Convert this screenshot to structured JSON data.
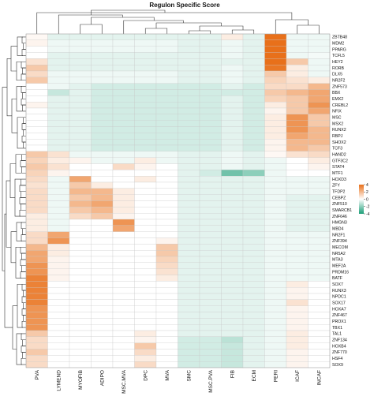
{
  "chart_data": {
    "type": "heatmap",
    "title": "Regulon Specific Score",
    "columns": [
      "PVA",
      "LYMEND",
      "MYOFIB",
      "ADIPO",
      "MSC.MVA",
      "DPC",
      "MVA",
      "SMC",
      "MSC.PVA",
      "FIB",
      "ECM",
      "PERI",
      "ICAF",
      "INCAF"
    ],
    "rows": [
      "ZBTB48",
      "MDM2",
      "PPARG",
      "TCFL5",
      "HEY2",
      "RORB",
      "DLX5",
      "NR2F2",
      "ZNF573",
      "BBX",
      "EMX2",
      "CREBL2",
      "NFIX",
      "MSC",
      "MSX2",
      "RUNX2",
      "RBPJ",
      "SHOX2",
      "TCF3",
      "HAND2",
      "GTF3C2",
      "STAT4",
      "MTF1",
      "HOXD3",
      "ZFY",
      "TFDP2",
      "CEBPZ",
      "ZNF510",
      "SMARCB1",
      "ZNF646",
      "HMGN3",
      "MBD4",
      "NR2F1",
      "ZNF394",
      "MECOM",
      "NR5A2",
      "MTA3",
      "MEF2A",
      "PRDM16",
      "BATF",
      "SOX7",
      "RUNX3",
      "NPDC1",
      "SOX17",
      "HOXA7",
      "ZNF467",
      "PROX1",
      "TBX1",
      "TAL1",
      "ZNF134",
      "HOXB4",
      "ZNF770",
      "HSF4",
      "SOX9"
    ],
    "values": [
      [
        0.2,
        -0.5,
        -0.5,
        -0.5,
        -0.5,
        -0.5,
        -0.5,
        -0.5,
        -0.5,
        0.5,
        -0.5,
        4,
        -0.3,
        -0.3
      ],
      [
        0.3,
        -0.3,
        -0.3,
        -0.3,
        -0.3,
        -0.3,
        -0.3,
        -0.5,
        -0.5,
        -0.3,
        -0.5,
        4,
        -0.3,
        -0.3
      ],
      [
        0,
        -0.3,
        -0.3,
        -0.3,
        -0.3,
        -0.3,
        -0.3,
        -0.5,
        -0.5,
        -0.3,
        -0.5,
        4,
        -0.3,
        -0.3
      ],
      [
        0,
        -0.5,
        -0.5,
        -0.5,
        -0.5,
        -0.5,
        -0.5,
        -0.5,
        -0.5,
        -0.3,
        -0.5,
        4,
        -0.3,
        -0.2
      ],
      [
        0.8,
        -0.5,
        -0.5,
        -0.5,
        -0.5,
        -0.5,
        -0.5,
        -0.5,
        -0.5,
        -0.5,
        -0.5,
        4,
        1.5,
        -0.3
      ],
      [
        1.5,
        -0.5,
        -0.5,
        -0.5,
        -0.5,
        -0.5,
        -0.5,
        -0.5,
        -0.5,
        -0.3,
        -0.5,
        3.8,
        0.5,
        -0.3
      ],
      [
        1,
        -0.3,
        -0.3,
        -0.3,
        -0.3,
        -0.3,
        -0.3,
        -0.5,
        -0.5,
        -0.3,
        -0.5,
        1.5,
        0.5,
        -0.3
      ],
      [
        1.5,
        -0.3,
        -0.3,
        -0.3,
        -0.3,
        -0.3,
        -0.3,
        -0.5,
        -0.5,
        -0.3,
        -0.5,
        1.2,
        0.8,
        0.5
      ],
      [
        0,
        -0.3,
        -0.5,
        -0.8,
        -0.8,
        -0.8,
        -0.8,
        -0.8,
        -0.8,
        -0.5,
        -0.8,
        1,
        1,
        2
      ],
      [
        0,
        -1,
        -0.5,
        -0.8,
        -0.8,
        -0.8,
        -0.8,
        -0.8,
        -0.8,
        -0.8,
        -0.8,
        1.5,
        2,
        2.5
      ],
      [
        0,
        -0.5,
        -0.5,
        -0.8,
        -0.8,
        -0.8,
        -0.8,
        -0.8,
        -0.8,
        -0.5,
        -0.8,
        1.2,
        1.5,
        2.5
      ],
      [
        0.3,
        -0.5,
        -0.5,
        -0.8,
        -0.8,
        -0.8,
        -0.8,
        -0.8,
        -0.8,
        -0.5,
        -0.8,
        0.5,
        1.5,
        3
      ],
      [
        0,
        -0.5,
        -0.5,
        -0.8,
        -0.8,
        -0.8,
        -0.8,
        -0.8,
        -0.8,
        -0.5,
        -0.8,
        0.3,
        1.5,
        2.5
      ],
      [
        0,
        -0.5,
        -0.5,
        -0.8,
        -0.8,
        -0.8,
        -0.8,
        -0.8,
        -0.8,
        -0.5,
        -0.8,
        0.5,
        3,
        1.5
      ],
      [
        0,
        -0.5,
        -0.5,
        -0.8,
        -0.8,
        -0.8,
        -0.8,
        -0.8,
        -0.8,
        -0.5,
        -0.8,
        0.5,
        3,
        1.5
      ],
      [
        0,
        -0.5,
        -0.5,
        -0.8,
        -0.8,
        -0.8,
        -0.8,
        -0.8,
        -0.8,
        -0.5,
        -0.8,
        0.5,
        3,
        2
      ],
      [
        0,
        -0.5,
        -0.5,
        -0.8,
        -0.8,
        -0.8,
        -0.8,
        -0.8,
        -0.8,
        -0.5,
        -0.8,
        0.5,
        2.5,
        2
      ],
      [
        0,
        -0.5,
        -0.5,
        -0.8,
        -0.8,
        -0.8,
        -0.8,
        -0.8,
        -0.8,
        -0.5,
        -0.8,
        0.3,
        2,
        2
      ],
      [
        0,
        -0.5,
        -0.5,
        -0.8,
        -0.8,
        -0.8,
        -0.8,
        -0.8,
        -0.8,
        -0.5,
        -0.8,
        0.3,
        2,
        1.5
      ],
      [
        1.5,
        0.8,
        -0.3,
        -0.3,
        -0.3,
        -0.3,
        -0.3,
        -0.5,
        -0.5,
        -0.3,
        -0.5,
        0.2,
        0.8,
        1
      ],
      [
        1.2,
        0.5,
        0.3,
        -0.3,
        -0.3,
        0.5,
        -0.3,
        -0.5,
        -0.5,
        -0.3,
        -0.5,
        -0.3,
        0,
        0.5
      ],
      [
        1.5,
        0.8,
        0,
        0,
        1,
        0.3,
        0,
        -0.5,
        -0.5,
        -0.3,
        -0.5,
        -0.3,
        0,
        0.3
      ],
      [
        1.2,
        0.3,
        0,
        0,
        0,
        0,
        0,
        -0.5,
        -0.8,
        -2.5,
        -2,
        -0.3,
        0,
        0
      ],
      [
        1,
        -0.3,
        2.5,
        0,
        0,
        0.5,
        0,
        -0.5,
        -0.5,
        -0.5,
        -0.5,
        -0.3,
        -0.3,
        -0.3
      ],
      [
        0.8,
        -0.3,
        1.5,
        0.5,
        0,
        0,
        0,
        -0.5,
        -0.5,
        -0.5,
        -0.5,
        -0.3,
        -0.3,
        -0.3
      ],
      [
        1,
        -0.3,
        2,
        2,
        0.5,
        0,
        0,
        -0.5,
        -0.5,
        -0.5,
        -0.5,
        -0.3,
        -0.3,
        -0.3
      ],
      [
        1,
        -0.3,
        1.5,
        2,
        0.5,
        0,
        0,
        -0.5,
        -0.5,
        -0.5,
        -0.5,
        -0.3,
        -0.5,
        -0.5
      ],
      [
        1,
        -0.3,
        2,
        2.5,
        0.5,
        0,
        0,
        -0.5,
        -0.5,
        -0.5,
        -0.5,
        -0.3,
        -0.5,
        -0.5
      ],
      [
        1,
        -0.3,
        1.5,
        2,
        0.5,
        0,
        0,
        -0.5,
        -0.5,
        -0.5,
        -0.5,
        -0.3,
        -0.5,
        -0.5
      ],
      [
        0.5,
        -0.3,
        1,
        1.5,
        0.3,
        0,
        0,
        -0.5,
        -0.5,
        -0.5,
        -0.5,
        -0.3,
        -0.5,
        -0.5
      ],
      [
        0.5,
        -0.3,
        0,
        0,
        3,
        0,
        0,
        -0.5,
        -0.5,
        -0.5,
        -0.5,
        -0.3,
        -0.5,
        -0.5
      ],
      [
        0.5,
        -0.3,
        0,
        0,
        2.5,
        0,
        0,
        -0.5,
        -0.5,
        -0.5,
        -0.5,
        -0.3,
        -0.5,
        -0.5
      ],
      [
        1,
        2.5,
        0,
        0,
        0,
        0,
        0,
        -0.5,
        -0.5,
        -0.5,
        -0.5,
        -0.3,
        -0.3,
        -0.3
      ],
      [
        1,
        3,
        0,
        0,
        0,
        0,
        0.3,
        -0.5,
        -0.5,
        -0.5,
        -0.5,
        -0.3,
        -0.3,
        -0.3
      ],
      [
        2,
        0.5,
        0,
        0,
        0,
        0,
        1.5,
        -0.5,
        -0.5,
        -0.5,
        -0.5,
        -0.3,
        -0.3,
        -0.3
      ],
      [
        2.5,
        0.5,
        0,
        0,
        0,
        0,
        1.5,
        -0.5,
        -0.5,
        -0.5,
        -0.5,
        -0.3,
        -0.3,
        -0.3
      ],
      [
        2.5,
        0.3,
        0,
        0,
        0,
        0,
        1.2,
        -0.5,
        -0.5,
        -0.5,
        -0.5,
        -0.3,
        -0.3,
        -0.3
      ],
      [
        3,
        0.3,
        0,
        0,
        0,
        0,
        1,
        -0.5,
        -0.5,
        -0.5,
        -0.5,
        -0.3,
        -0.3,
        -0.3
      ],
      [
        3,
        0.3,
        0,
        0,
        0,
        0,
        0.8,
        -0.5,
        -0.5,
        -0.5,
        -0.5,
        -0.3,
        -0.3,
        -0.3
      ],
      [
        3.5,
        0.3,
        0,
        0,
        0,
        0,
        0.5,
        -0.5,
        -0.5,
        -0.5,
        -0.5,
        -0.3,
        -0.3,
        -0.3
      ],
      [
        3.5,
        0,
        0,
        0,
        0,
        0,
        0,
        -0.5,
        -0.5,
        -0.5,
        -0.5,
        -0.3,
        0.5,
        0
      ],
      [
        3.5,
        0,
        0,
        0,
        0,
        0,
        0,
        -0.5,
        -0.5,
        -0.5,
        -0.5,
        -0.3,
        0.3,
        0
      ],
      [
        3.5,
        0,
        0,
        0,
        0,
        0,
        0,
        -0.5,
        -0.5,
        -0.5,
        -0.5,
        -0.3,
        0.3,
        0
      ],
      [
        3.5,
        0,
        0,
        0,
        0,
        0,
        0,
        -0.5,
        -0.5,
        -0.5,
        -0.5,
        -0.3,
        0.8,
        0
      ],
      [
        3,
        0,
        0,
        0,
        0,
        0,
        0,
        -0.5,
        -0.5,
        -0.5,
        -0.5,
        -0.3,
        0.3,
        0
      ],
      [
        3,
        0,
        0,
        0,
        0,
        0,
        0,
        -0.5,
        -0.5,
        -0.5,
        -0.5,
        -0.3,
        0.3,
        0
      ],
      [
        3,
        0,
        0,
        0,
        0,
        0,
        0,
        -0.5,
        -0.5,
        -0.5,
        -0.5,
        -0.3,
        0.3,
        0
      ],
      [
        3,
        0,
        0,
        0,
        0,
        0,
        0,
        -0.5,
        -0.5,
        -0.5,
        -0.5,
        -0.3,
        0.3,
        0
      ],
      [
        1.5,
        0,
        0,
        0,
        0,
        0.5,
        0,
        -0.5,
        -0.5,
        -0.5,
        -0.5,
        -0.3,
        0.5,
        0
      ],
      [
        1,
        0,
        0,
        0,
        0,
        0.3,
        0,
        -0.8,
        -0.8,
        -1.2,
        -0.5,
        -0.3,
        0.5,
        0
      ],
      [
        1,
        0,
        0,
        0,
        0,
        1.5,
        0,
        -0.8,
        -0.8,
        -1,
        -0.5,
        -0.3,
        0.5,
        0
      ],
      [
        1.5,
        0,
        0,
        0,
        0,
        1,
        0,
        -0.8,
        -0.8,
        -1,
        -0.5,
        -0.3,
        0.3,
        0
      ],
      [
        1,
        0,
        0,
        0,
        0,
        0.5,
        0,
        -0.8,
        -0.8,
        -1,
        -0.5,
        -0.3,
        0.3,
        0
      ],
      [
        1,
        0,
        0,
        0,
        0,
        1,
        0,
        -0.8,
        -0.8,
        -1,
        -0.5,
        -0.3,
        0.3,
        0
      ]
    ],
    "color_scale": {
      "min": -4,
      "max": 4,
      "low": "#1b9e77",
      "mid": "#ffffff",
      "high": "#e8701a"
    },
    "legend_ticks": [
      "4",
      "2",
      "0",
      "-2",
      "-4"
    ],
    "legend_placement": "right",
    "grid": true
  }
}
